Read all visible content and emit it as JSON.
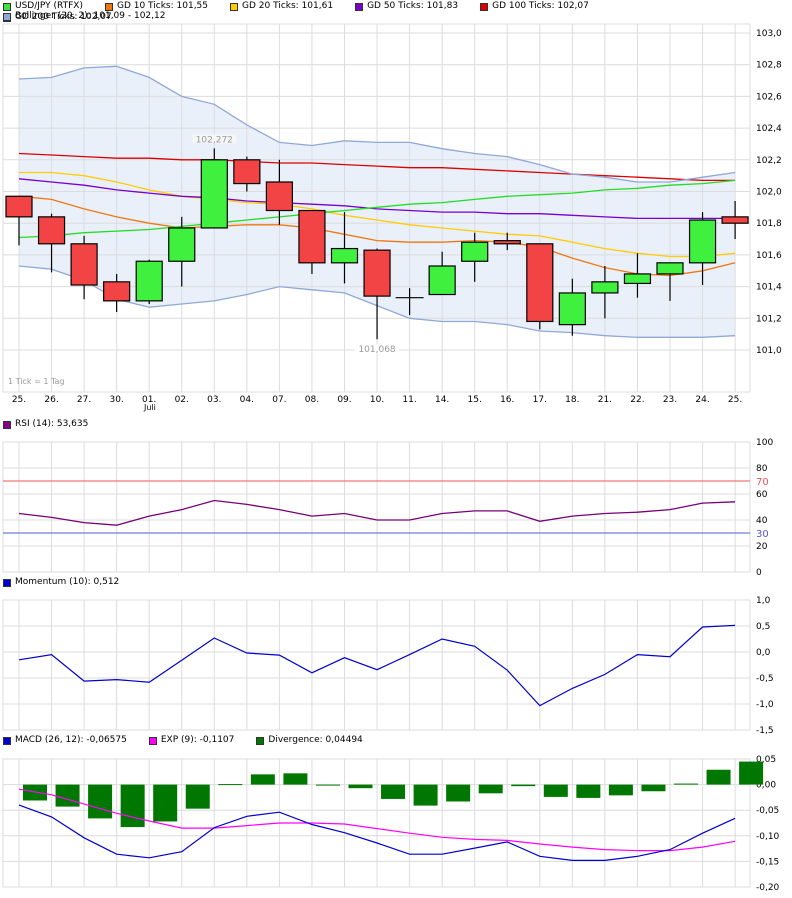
{
  "main_legend": [
    {
      "label": "USD/JPY (RTFX)",
      "color": "#22cc22"
    },
    {
      "label": "GD 10 Ticks: 101,55",
      "color": "#ee7711"
    },
    {
      "label": "GD 20 Ticks: 101,61",
      "color": "#ffcc00"
    },
    {
      "label": "GD 50 Ticks: 101,83",
      "color": "#7700cc"
    },
    {
      "label": "GD 100 Ticks: 102,07",
      "color": "#dd0000"
    },
    {
      "label": "GD 200 Ticks: 102,07",
      "color": "#22dd22"
    },
    {
      "label": "Bollinger (20, 2): 101,09 - 102,12",
      "color": "#8fa8d8"
    }
  ],
  "rsi_legend": {
    "label": "RSI (14): 53,635",
    "color": "#880088"
  },
  "momentum_legend": {
    "label": "Momentum (10): 0,512",
    "color": "#0000cc"
  },
  "macd_legend": [
    {
      "label": "MACD (26, 12): -0,06575",
      "color": "#0000cc"
    },
    {
      "label": "EXP (9): -0,1107",
      "color": "#ff00ff"
    },
    {
      "label": "Divergence: 0,04494",
      "color": "#007700"
    }
  ],
  "tick_note": "1 Tick = 1 Tag",
  "annotations": {
    "high": "102,272",
    "low": "101,068"
  },
  "month_label": "Juli",
  "chart_data": [
    {
      "type": "candlestick",
      "title": "USD/JPY (RTFX)",
      "categories": [
        "25.",
        "26.",
        "27.",
        "30.",
        "01.",
        "02.",
        "03.",
        "04.",
        "07.",
        "08.",
        "09.",
        "10.",
        "11.",
        "14.",
        "15.",
        "16.",
        "17.",
        "18.",
        "21.",
        "22.",
        "23.",
        "24.",
        "25."
      ],
      "ohlc": [
        [
          101.97,
          101.97,
          101.66,
          101.84
        ],
        [
          101.84,
          101.86,
          101.49,
          101.67
        ],
        [
          101.67,
          101.72,
          101.32,
          101.41
        ],
        [
          101.43,
          101.48,
          101.24,
          101.31
        ],
        [
          101.31,
          101.57,
          101.29,
          101.56
        ],
        [
          101.56,
          101.84,
          101.4,
          101.77
        ],
        [
          101.77,
          102.272,
          101.77,
          102.2
        ],
        [
          102.2,
          102.22,
          102.0,
          102.05
        ],
        [
          102.06,
          102.2,
          101.79,
          101.88
        ],
        [
          101.88,
          101.88,
          101.48,
          101.55
        ],
        [
          101.55,
          101.87,
          101.42,
          101.64
        ],
        [
          101.63,
          101.64,
          101.068,
          101.34
        ],
        [
          101.33,
          101.39,
          101.22,
          101.33
        ],
        [
          101.35,
          101.62,
          101.35,
          101.53
        ],
        [
          101.56,
          101.74,
          101.43,
          101.68
        ],
        [
          101.69,
          101.74,
          101.63,
          101.67
        ],
        [
          101.67,
          101.67,
          101.13,
          101.18
        ],
        [
          101.16,
          101.45,
          101.09,
          101.36
        ],
        [
          101.36,
          101.53,
          101.2,
          101.43
        ],
        [
          101.42,
          101.61,
          101.33,
          101.48
        ],
        [
          101.48,
          101.51,
          101.31,
          101.55
        ],
        [
          101.55,
          101.87,
          101.41,
          101.82
        ],
        [
          101.84,
          101.94,
          101.7,
          101.8
        ]
      ],
      "overlays": [
        {
          "name": "GD 10",
          "color": "#ee7711",
          "values": [
            101.97,
            101.95,
            101.89,
            101.84,
            101.8,
            101.77,
            101.78,
            101.79,
            101.79,
            101.77,
            101.73,
            101.69,
            101.68,
            101.68,
            101.69,
            101.68,
            101.65,
            101.58,
            101.52,
            101.48,
            101.47,
            101.5,
            101.55
          ]
        },
        {
          "name": "GD 20",
          "color": "#ffcc00",
          "values": [
            102.12,
            102.12,
            102.1,
            102.06,
            102.01,
            101.97,
            101.95,
            101.93,
            101.92,
            101.89,
            101.85,
            101.82,
            101.79,
            101.77,
            101.75,
            101.73,
            101.72,
            101.68,
            101.64,
            101.61,
            101.59,
            101.59,
            101.61
          ]
        },
        {
          "name": "GD 50",
          "color": "#7700cc",
          "values": [
            102.08,
            102.06,
            102.04,
            102.01,
            101.99,
            101.97,
            101.96,
            101.94,
            101.93,
            101.92,
            101.91,
            101.89,
            101.88,
            101.87,
            101.87,
            101.86,
            101.86,
            101.85,
            101.84,
            101.83,
            101.83,
            101.83,
            101.83
          ]
        },
        {
          "name": "GD 100",
          "color": "#dd0000",
          "values": [
            102.24,
            102.23,
            102.22,
            102.21,
            102.21,
            102.2,
            102.2,
            102.19,
            102.18,
            102.18,
            102.17,
            102.16,
            102.15,
            102.15,
            102.14,
            102.13,
            102.12,
            102.11,
            102.1,
            102.09,
            102.08,
            102.07,
            102.07
          ]
        },
        {
          "name": "GD 200",
          "color": "#22dd22",
          "values": [
            101.71,
            101.72,
            101.74,
            101.75,
            101.76,
            101.78,
            101.8,
            101.82,
            101.84,
            101.86,
            101.88,
            101.9,
            101.92,
            101.93,
            101.95,
            101.97,
            101.98,
            101.99,
            102.01,
            102.02,
            102.04,
            102.05,
            102.07
          ]
        },
        {
          "name": "Bollinger upper",
          "color": "#8fa8d8",
          "values": [
            102.71,
            102.72,
            102.78,
            102.79,
            102.72,
            102.6,
            102.55,
            102.42,
            102.31,
            102.29,
            102.32,
            102.31,
            102.31,
            102.27,
            102.24,
            102.22,
            102.17,
            102.11,
            102.09,
            102.06,
            102.06,
            102.09,
            102.12
          ]
        },
        {
          "name": "Bollinger lower",
          "color": "#8fa8d8",
          "values": [
            101.53,
            101.51,
            101.44,
            101.32,
            101.27,
            101.29,
            101.31,
            101.35,
            101.4,
            101.38,
            101.36,
            101.28,
            101.2,
            101.18,
            101.18,
            101.16,
            101.12,
            101.11,
            101.09,
            101.08,
            101.08,
            101.08,
            101.09
          ]
        }
      ],
      "ylim": [
        100.8,
        103.05
      ],
      "yticks": [
        "101,0",
        "101,2",
        "101,4",
        "101,6",
        "101,8",
        "102,0",
        "102,2",
        "102,4",
        "102,6",
        "102,8",
        "103,0"
      ],
      "grid": true
    },
    {
      "type": "line",
      "title": "RSI (14)",
      "categories": [
        "25.",
        "26.",
        "27.",
        "30.",
        "01.",
        "02.",
        "03.",
        "04.",
        "07.",
        "08.",
        "09.",
        "10.",
        "11.",
        "14.",
        "15.",
        "16.",
        "17.",
        "18.",
        "21.",
        "22.",
        "23.",
        "24.",
        "25."
      ],
      "values": [
        45,
        42,
        38,
        36,
        43,
        48,
        55,
        52,
        48,
        43,
        45,
        40,
        40,
        45,
        47,
        47,
        39,
        43,
        45,
        46,
        48,
        53,
        54
      ],
      "reference_lines": [
        {
          "value": 70,
          "color": "#ee5555"
        },
        {
          "value": 30,
          "color": "#5555dd"
        }
      ],
      "ylim": [
        0,
        100
      ],
      "yticks": [
        "0",
        "20",
        "40",
        "60",
        "80",
        "100"
      ]
    },
    {
      "type": "line",
      "title": "Momentum (10)",
      "categories": [
        "25.",
        "26.",
        "27.",
        "30.",
        "01.",
        "02.",
        "03.",
        "04.",
        "07.",
        "08.",
        "09.",
        "10.",
        "11.",
        "14.",
        "15.",
        "16.",
        "17.",
        "18.",
        "21.",
        "22.",
        "23.",
        "24.",
        "25."
      ],
      "values": [
        -0.15,
        -0.05,
        -0.56,
        -0.53,
        -0.58,
        -0.16,
        0.27,
        -0.02,
        -0.06,
        -0.4,
        -0.11,
        -0.34,
        -0.05,
        0.25,
        0.11,
        -0.35,
        -1.03,
        -0.7,
        -0.43,
        -0.05,
        -0.09,
        0.48,
        0.512
      ],
      "ylim": [
        -1.5,
        1.0
      ],
      "yticks": [
        "-1,5",
        "-1,0",
        "-0,5",
        "0,0",
        "0,5",
        "1,0"
      ]
    },
    {
      "type": "line+bar",
      "title": "MACD",
      "categories": [
        "25.",
        "26.",
        "27.",
        "30.",
        "01.",
        "02.",
        "03.",
        "04.",
        "07.",
        "08.",
        "09.",
        "10.",
        "11.",
        "14.",
        "15.",
        "16.",
        "17.",
        "18.",
        "21.",
        "22.",
        "23.",
        "24.",
        "25."
      ],
      "series": [
        {
          "name": "MACD (26, 12)",
          "color": "#0000cc",
          "values": [
            -0.04,
            -0.063,
            -0.104,
            -0.136,
            -0.143,
            -0.131,
            -0.084,
            -0.062,
            -0.054,
            -0.078,
            -0.094,
            -0.114,
            -0.136,
            -0.136,
            -0.124,
            -0.112,
            -0.14,
            -0.148,
            -0.148,
            -0.14,
            -0.127,
            -0.095,
            -0.06575
          ]
        },
        {
          "name": "EXP (9)",
          "color": "#ff00ff",
          "values": [
            -0.009,
            -0.02,
            -0.038,
            -0.056,
            -0.071,
            -0.085,
            -0.085,
            -0.08,
            -0.075,
            -0.075,
            -0.077,
            -0.086,
            -0.095,
            -0.103,
            -0.107,
            -0.109,
            -0.116,
            -0.122,
            -0.127,
            -0.129,
            -0.129,
            -0.122,
            -0.1107
          ]
        },
        {
          "name": "Divergence",
          "color": "#007700",
          "values": [
            -0.031,
            -0.043,
            -0.066,
            -0.083,
            -0.072,
            -0.047,
            0.001,
            0.02,
            0.022,
            -0.001,
            -0.007,
            -0.028,
            -0.041,
            -0.033,
            -0.017,
            -0.003,
            -0.024,
            -0.026,
            -0.021,
            -0.013,
            0.002,
            0.029,
            0.04494
          ]
        }
      ],
      "ylim": [
        -0.2,
        0.05
      ],
      "yticks": [
        "-0,20",
        "-0,15",
        "-0,10",
        "-0,05",
        "0,00",
        "0,05"
      ]
    }
  ]
}
